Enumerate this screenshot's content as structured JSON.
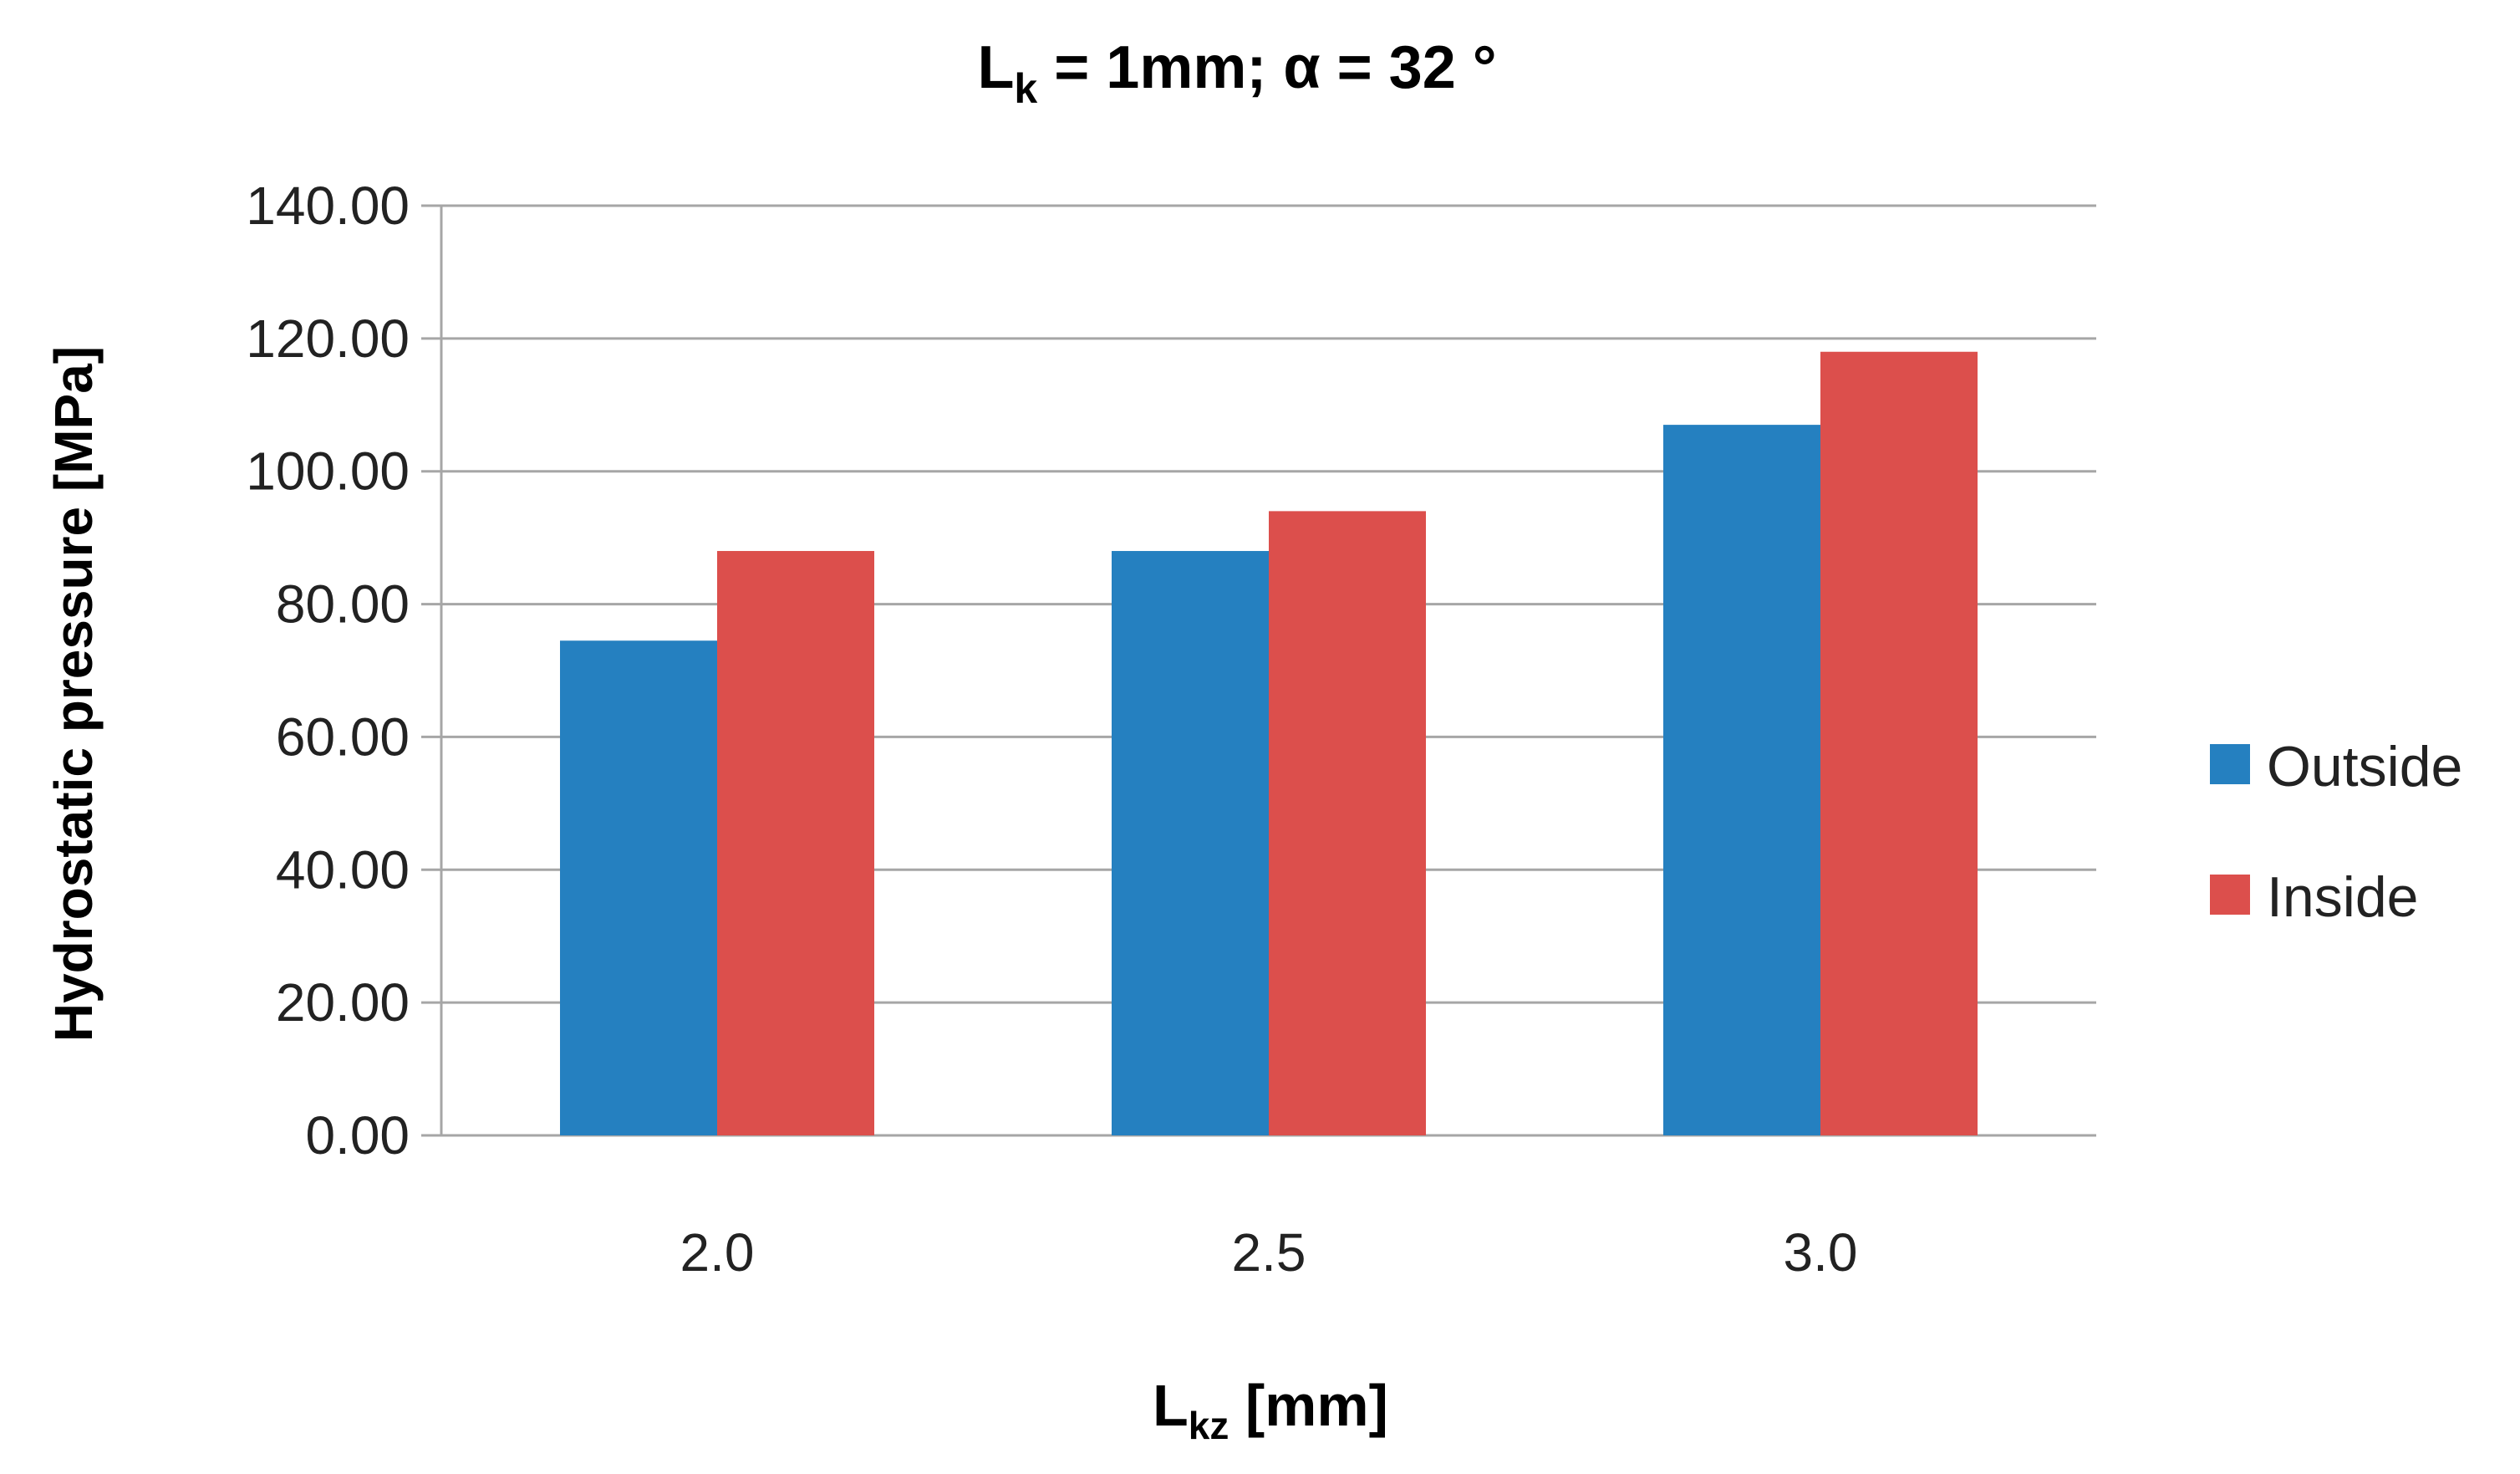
{
  "chart_data": {
    "type": "bar",
    "title": {
      "main": "L",
      "main_sub": "k",
      "rest": " = 1mm; α = 32 °"
    },
    "categories": [
      "2.0",
      "2.5",
      "3.0"
    ],
    "series": [
      {
        "name": "Outside",
        "color": "#2580c0",
        "values": [
          74.5,
          88.0,
          107.0
        ]
      },
      {
        "name": "Inside",
        "color": "#dc4f4c",
        "values": [
          88.0,
          94.0,
          118.0
        ]
      }
    ],
    "ylim": [
      0,
      140
    ],
    "yticks": [
      "0.00",
      "20.00",
      "40.00",
      "60.00",
      "80.00",
      "100.00",
      "120.00",
      "140.00"
    ],
    "ylabel": "Hydrostatic pressure [MPa]",
    "xlabel": {
      "main": "L",
      "sub": "kz",
      "rest": " [mm]"
    },
    "grid": true,
    "legend_position": "right"
  }
}
